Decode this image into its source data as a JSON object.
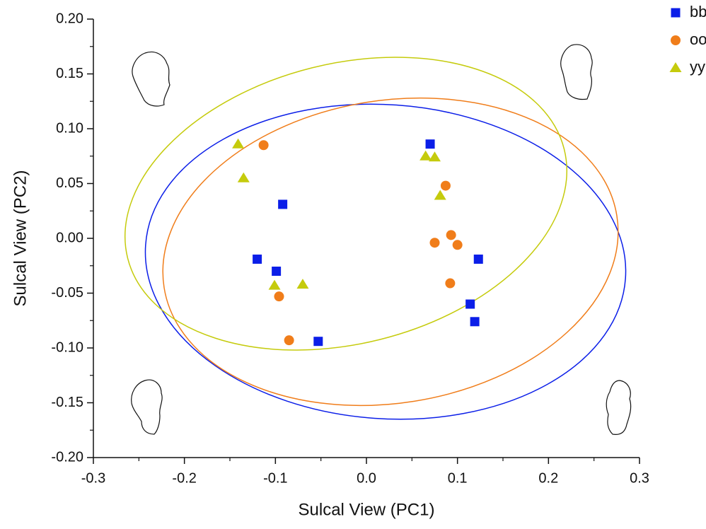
{
  "chart_data": {
    "type": "scatter",
    "xlabel": "Sulcal View (PC1)",
    "ylabel": "Sulcal View (PC2)",
    "xlim": [
      -0.3,
      0.3
    ],
    "xticks": [
      -0.3,
      -0.2,
      -0.1,
      {
        "value": 0,
        "label": "0.0"
      },
      0.1,
      0.2,
      0.3
    ],
    "ylim": [
      -0.2,
      0.2
    ],
    "yticks": [
      {
        "value": -0.2,
        "label": "-0.20"
      },
      -0.15,
      {
        "value": -0.1,
        "label": "-0.10"
      },
      -0.05,
      {
        "value": 0,
        "label": "0.00"
      },
      0.05,
      {
        "value": 0.1,
        "label": "0.10"
      },
      0.15,
      {
        "value": 0.2,
        "label": "0.20"
      }
    ],
    "legend": "top-right",
    "series": [
      {
        "name": "bb",
        "color": "#0b1ee8",
        "marker": "square",
        "x": [
          0.07,
          -0.092,
          -0.12,
          -0.099,
          -0.053,
          0.123,
          0.114,
          0.119
        ],
        "values": [
          0.086,
          0.031,
          -0.019,
          -0.03,
          -0.094,
          -0.019,
          -0.06,
          -0.076
        ]
      },
      {
        "name": "oo",
        "color": "#f07d1a",
        "marker": "circle",
        "x": [
          -0.113,
          0.087,
          0.093,
          0.075,
          0.1,
          0.092,
          -0.096,
          -0.085
        ],
        "values": [
          0.085,
          0.048,
          0.003,
          -0.004,
          -0.006,
          -0.041,
          -0.053,
          -0.093
        ]
      },
      {
        "name": "yy",
        "color": "#c5cb0c",
        "marker": "triangle",
        "x": [
          -0.141,
          -0.135,
          0.065,
          0.075,
          0.081,
          -0.101,
          -0.07
        ],
        "values": [
          0.086,
          0.055,
          0.075,
          0.074,
          0.039,
          -0.043,
          -0.042
        ]
      }
    ]
  }
}
